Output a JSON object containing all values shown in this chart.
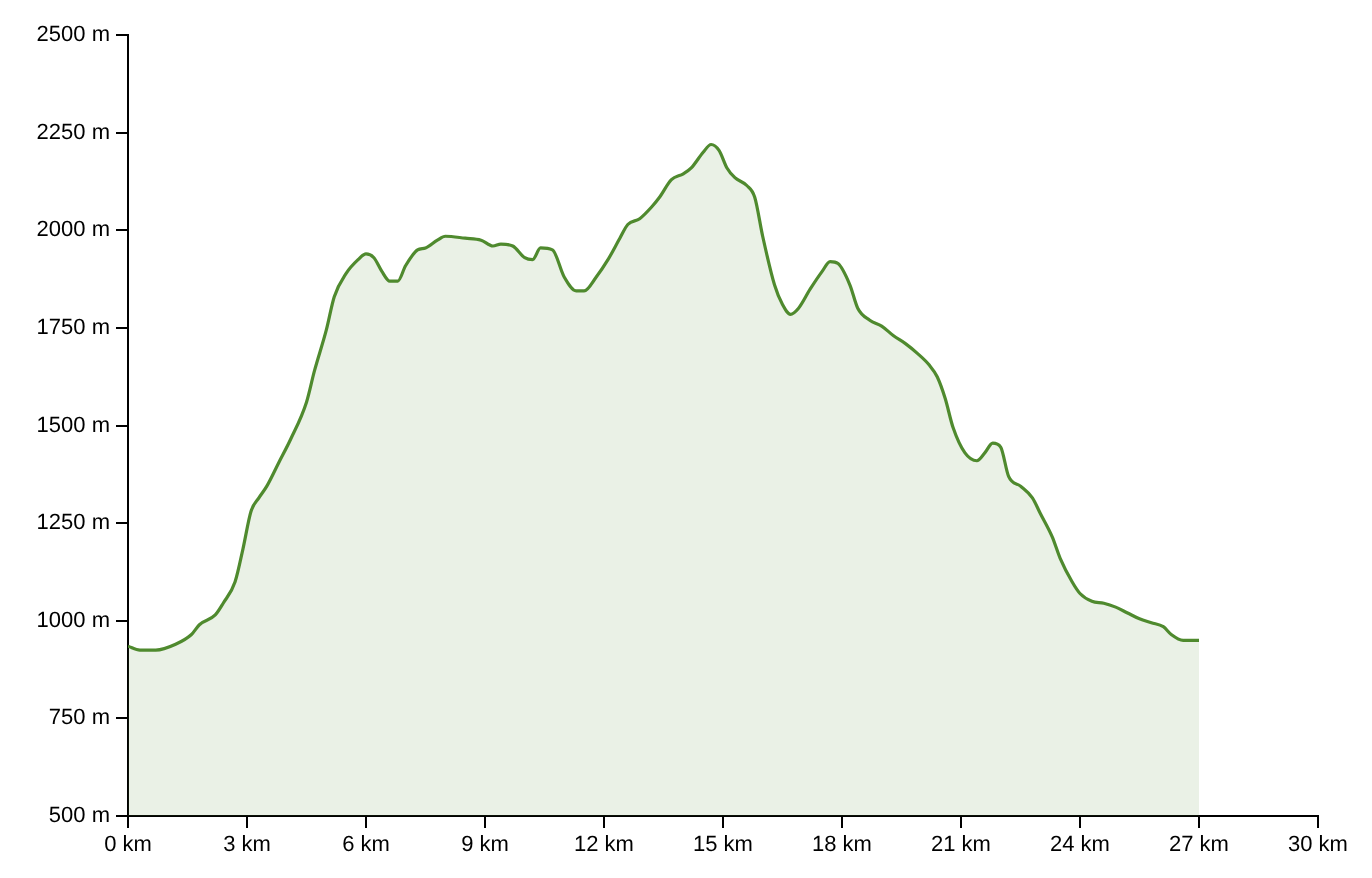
{
  "chart_data": {
    "type": "area",
    "xlim": [
      0,
      30
    ],
    "ylim": [
      500,
      2500
    ],
    "xticks": [
      {
        "value": 0,
        "label": "0 km"
      },
      {
        "value": 3,
        "label": "3 km"
      },
      {
        "value": 6,
        "label": "6 km"
      },
      {
        "value": 9,
        "label": "9 km"
      },
      {
        "value": 12,
        "label": "12 km"
      },
      {
        "value": 15,
        "label": "15 km"
      },
      {
        "value": 18,
        "label": "18 km"
      },
      {
        "value": 21,
        "label": "21 km"
      },
      {
        "value": 24,
        "label": "24 km"
      },
      {
        "value": 27,
        "label": "27 km"
      },
      {
        "value": 30,
        "label": "30 km"
      }
    ],
    "yticks": [
      {
        "value": 500,
        "label": "500 m"
      },
      {
        "value": 750,
        "label": "750 m"
      },
      {
        "value": 1000,
        "label": "1000 m"
      },
      {
        "value": 1250,
        "label": "1250 m"
      },
      {
        "value": 1500,
        "label": "1500 m"
      },
      {
        "value": 1750,
        "label": "1750 m"
      },
      {
        "value": 2000,
        "label": "2000 m"
      },
      {
        "value": 2250,
        "label": "2250 m"
      },
      {
        "value": 2500,
        "label": "2500 m"
      }
    ],
    "grid": false,
    "legend": false,
    "series": [
      {
        "color": "#4f8a2e",
        "x": [
          0,
          0.3,
          0.7,
          1.2,
          1.6,
          1.8,
          2.2,
          2.4,
          2.7,
          2.9,
          3.1,
          3.3,
          3.5,
          3.8,
          4.1,
          4.5,
          4.7,
          5.0,
          5.2,
          5.5,
          5.8,
          6.0,
          6.2,
          6.4,
          6.6,
          6.8,
          7.0,
          7.3,
          7.5,
          7.8,
          8.0,
          8.5,
          8.9,
          9.2,
          9.4,
          9.7,
          10.0,
          10.2,
          10.4,
          10.7,
          11.0,
          11.3,
          11.5,
          11.8,
          12.1,
          12.4,
          12.6,
          12.9,
          13.2,
          13.4,
          13.7,
          14.0,
          14.2,
          14.5,
          14.7,
          14.9,
          15.1,
          15.3,
          15.6,
          15.8,
          16.0,
          16.3,
          16.5,
          16.7,
          16.9,
          17.2,
          17.5,
          17.7,
          17.9,
          18.2,
          18.4,
          18.7,
          19.0,
          19.3,
          19.6,
          19.9,
          20.2,
          20.4,
          20.6,
          20.8,
          21.1,
          21.4,
          21.6,
          21.8,
          22.0,
          22.2,
          22.5,
          22.8,
          23.0,
          23.3,
          23.5,
          23.8,
          24.0,
          24.3,
          24.6,
          24.9,
          25.2,
          25.5,
          25.8,
          26.1,
          26.3,
          26.6,
          27.0
        ],
        "values": [
          935,
          925,
          925,
          940,
          965,
          990,
          1015,
          1045,
          1100,
          1185,
          1280,
          1315,
          1345,
          1405,
          1465,
          1560,
          1640,
          1745,
          1830,
          1890,
          1925,
          1940,
          1930,
          1895,
          1870,
          1870,
          1910,
          1950,
          1955,
          1975,
          1985,
          1980,
          1975,
          1960,
          1965,
          1960,
          1930,
          1925,
          1955,
          1950,
          1880,
          1845,
          1845,
          1880,
          1925,
          1980,
          2015,
          2030,
          2060,
          2085,
          2130,
          2145,
          2160,
          2200,
          2220,
          2205,
          2160,
          2135,
          2115,
          2085,
          1985,
          1860,
          1810,
          1785,
          1800,
          1850,
          1895,
          1920,
          1915,
          1860,
          1800,
          1770,
          1755,
          1730,
          1710,
          1685,
          1655,
          1625,
          1570,
          1495,
          1430,
          1410,
          1430,
          1455,
          1445,
          1370,
          1345,
          1315,
          1275,
          1215,
          1160,
          1100,
          1070,
          1050,
          1045,
          1035,
          1020,
          1005,
          995,
          985,
          965,
          950,
          950
        ]
      }
    ]
  }
}
